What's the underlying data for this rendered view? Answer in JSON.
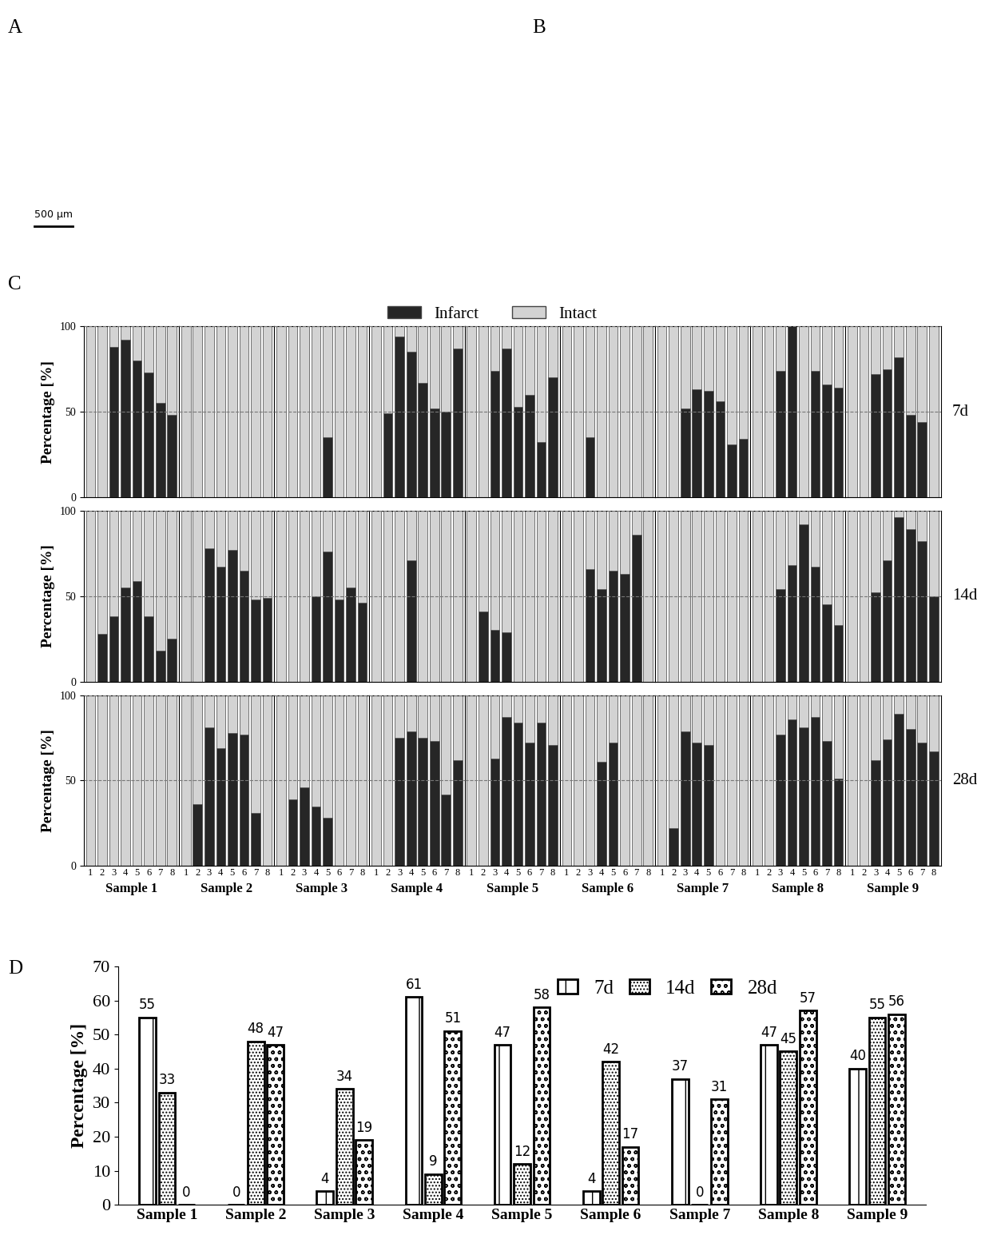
{
  "images": [
    {
      "panel": "A",
      "scale_bar": "500 µm"
    },
    {
      "panel": "B"
    }
  ],
  "chart_data": [
    {
      "panel": "C",
      "type": "bar",
      "stacked": true,
      "ylabel": "Percentage [%]",
      "ylim": [
        0,
        100
      ],
      "yticks": [
        0,
        50,
        100
      ],
      "grid": true,
      "legend": "upper center",
      "categories": [
        "1",
        "2",
        "3",
        "4",
        "5",
        "6",
        "7",
        "8"
      ],
      "rows": [
        "7d",
        "14d",
        "28d"
      ],
      "columns": [
        "Sample 1",
        "Sample 2",
        "Sample 3",
        "Sample 4",
        "Sample 5",
        "Sample 6",
        "Sample 7",
        "Sample 8",
        "Sample 9"
      ],
      "series": [
        {
          "name": "Infarct",
          "color": "#262626",
          "values": [
            [
              [
                0,
                0,
                88,
                92,
                80,
                73,
                55,
                48
              ],
              [
                0,
                0,
                0,
                0,
                0,
                0,
                0,
                0
              ],
              [
                0,
                0,
                0,
                0,
                35,
                0,
                0,
                0
              ],
              [
                0,
                49,
                94,
                85,
                67,
                52,
                50,
                87
              ],
              [
                0,
                0,
                74,
                87,
                53,
                60,
                32,
                70
              ],
              [
                0,
                0,
                35,
                0,
                0,
                0,
                0,
                0
              ],
              [
                0,
                0,
                52,
                63,
                62,
                56,
                31,
                34
              ],
              [
                0,
                0,
                74,
                100,
                0,
                74,
                66,
                64
              ],
              [
                0,
                0,
                72,
                75,
                82,
                48,
                44,
                0
              ]
            ],
            [
              [
                0,
                28,
                38,
                55,
                59,
                38,
                18,
                25
              ],
              [
                0,
                0,
                78,
                67,
                77,
                65,
                48,
                49
              ],
              [
                0,
                0,
                0,
                50,
                76,
                48,
                55,
                46
              ],
              [
                0,
                0,
                0,
                71,
                0,
                0,
                0,
                0
              ],
              [
                0,
                41,
                30,
                29,
                0,
                0,
                0,
                0
              ],
              [
                0,
                0,
                66,
                54,
                65,
                63,
                86,
                0
              ],
              [
                0,
                0,
                0,
                0,
                0,
                0,
                0,
                0
              ],
              [
                0,
                0,
                54,
                68,
                92,
                67,
                45,
                33
              ],
              [
                0,
                0,
                52,
                71,
                96,
                89,
                82,
                50
              ]
            ],
            [
              [
                0,
                0,
                0,
                0,
                0,
                0,
                0,
                0
              ],
              [
                0,
                36,
                81,
                69,
                78,
                77,
                31,
                0
              ],
              [
                0,
                39,
                46,
                35,
                28,
                0,
                0,
                0
              ],
              [
                0,
                0,
                75,
                79,
                75,
                73,
                42,
                62
              ],
              [
                0,
                0,
                63,
                87,
                84,
                72,
                84,
                71
              ],
              [
                0,
                0,
                0,
                61,
                72,
                0,
                0,
                0
              ],
              [
                0,
                22,
                79,
                72,
                71,
                0,
                0,
                0
              ],
              [
                0,
                0,
                77,
                86,
                81,
                87,
                73,
                51
              ],
              [
                0,
                0,
                62,
                74,
                89,
                80,
                72,
                67
              ]
            ]
          ]
        },
        {
          "name": "Intact",
          "color": "#d3d3d3",
          "values": [
            [
              [
                100,
                100,
                12,
                8,
                20,
                27,
                45,
                52
              ],
              [
                100,
                100,
                100,
                100,
                100,
                100,
                100,
                100
              ],
              [
                100,
                100,
                100,
                100,
                65,
                100,
                100,
                100
              ],
              [
                100,
                51,
                6,
                15,
                33,
                48,
                50,
                13
              ],
              [
                100,
                100,
                26,
                13,
                47,
                40,
                68,
                30
              ],
              [
                100,
                100,
                65,
                100,
                100,
                100,
                100,
                100
              ],
              [
                100,
                100,
                48,
                37,
                38,
                44,
                69,
                66
              ],
              [
                100,
                100,
                26,
                0,
                100,
                26,
                34,
                36
              ],
              [
                100,
                100,
                28,
                25,
                18,
                52,
                56,
                100
              ]
            ],
            [
              [
                100,
                72,
                62,
                45,
                41,
                62,
                82,
                75
              ],
              [
                100,
                100,
                22,
                33,
                23,
                35,
                52,
                51
              ],
              [
                100,
                100,
                100,
                50,
                24,
                52,
                45,
                54
              ],
              [
                100,
                100,
                100,
                29,
                100,
                100,
                100,
                100
              ],
              [
                100,
                59,
                70,
                71,
                100,
                100,
                100,
                100
              ],
              [
                100,
                100,
                34,
                46,
                35,
                37,
                14,
                100
              ],
              [
                100,
                100,
                100,
                100,
                100,
                100,
                100,
                100
              ],
              [
                100,
                100,
                46,
                32,
                8,
                33,
                55,
                67
              ],
              [
                100,
                100,
                48,
                29,
                4,
                11,
                18,
                50
              ]
            ],
            [
              [
                100,
                100,
                100,
                100,
                100,
                100,
                100,
                100
              ],
              [
                100,
                64,
                19,
                31,
                22,
                23,
                69,
                100
              ],
              [
                100,
                61,
                54,
                65,
                72,
                100,
                100,
                100
              ],
              [
                100,
                100,
                25,
                21,
                25,
                27,
                58,
                38
              ],
              [
                100,
                100,
                37,
                13,
                16,
                28,
                16,
                29
              ],
              [
                100,
                100,
                100,
                39,
                28,
                100,
                100,
                100
              ],
              [
                100,
                78,
                21,
                28,
                29,
                100,
                100,
                100
              ],
              [
                100,
                100,
                23,
                14,
                19,
                13,
                27,
                49
              ],
              [
                100,
                100,
                38,
                26,
                11,
                20,
                28,
                33
              ]
            ]
          ]
        }
      ]
    },
    {
      "panel": "D",
      "type": "bar",
      "ylabel": "Percentage [%]",
      "ylim": [
        0,
        70
      ],
      "yticks": [
        0,
        10,
        20,
        30,
        40,
        50,
        60,
        70
      ],
      "legend": "upper center",
      "data_labels": true,
      "categories": [
        "Sample 1",
        "Sample 2",
        "Sample 3",
        "Sample 4",
        "Sample 5",
        "Sample 6",
        "Sample 7",
        "Sample 8",
        "Sample 9"
      ],
      "series": [
        {
          "name": "7d",
          "color": "#ffffff",
          "values": [
            55,
            0,
            4,
            61,
            47,
            4,
            37,
            47,
            40
          ]
        },
        {
          "name": "14d",
          "color": "#ffffff",
          "values": [
            33,
            48,
            34,
            9,
            12,
            42,
            0,
            45,
            55
          ]
        },
        {
          "name": "28d",
          "color": "#ffffff",
          "values": [
            0,
            47,
            19,
            51,
            58,
            17,
            31,
            57,
            56
          ]
        }
      ]
    }
  ]
}
